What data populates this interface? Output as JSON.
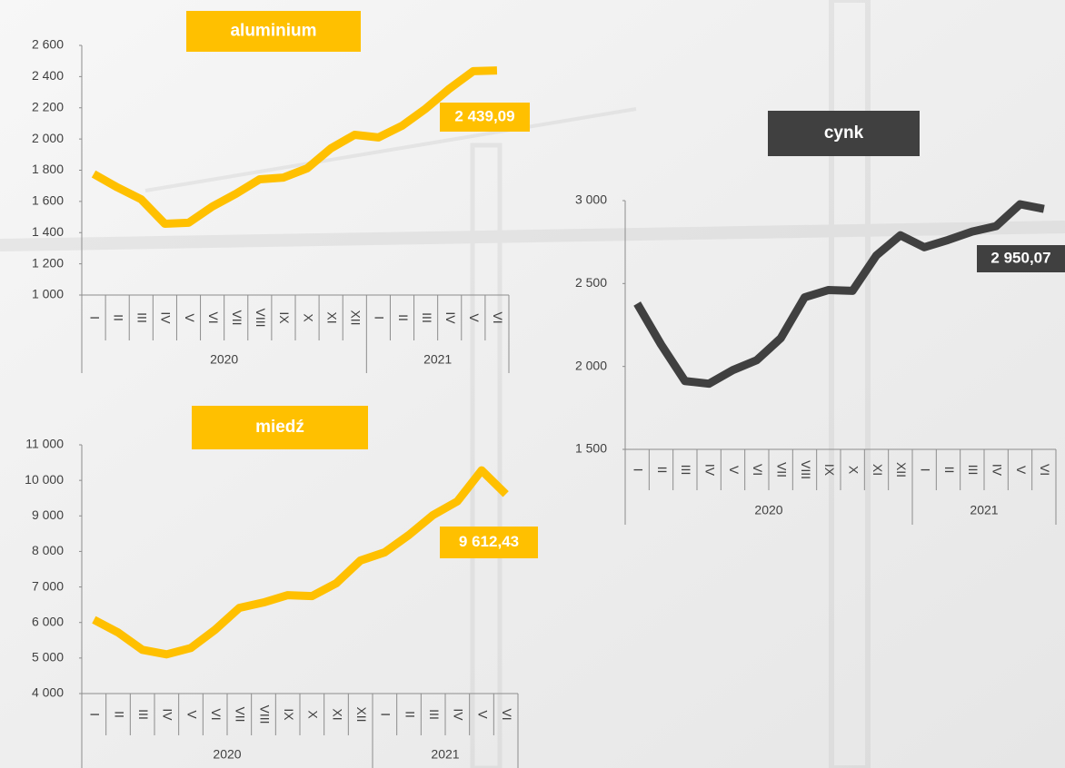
{
  "chart_data": [
    {
      "type": "line",
      "title": "aluminium",
      "color": "#ffc000",
      "category_groups": [
        {
          "label": "2020",
          "categories": [
            "I",
            "II",
            "III",
            "IV",
            "V",
            "VI",
            "VII",
            "VIII",
            "IX",
            "X",
            "XI",
            "XII"
          ]
        },
        {
          "label": "2021",
          "categories": [
            "I",
            "II",
            "III",
            "IV",
            "V",
            "VI"
          ]
        }
      ],
      "values": [
        1776,
        1690,
        1614,
        1457,
        1463,
        1567,
        1649,
        1742,
        1753,
        1812,
        1940,
        2027,
        2010,
        2085,
        2195,
        2323,
        2435,
        2439.09
      ],
      "value_labels": [
        null,
        null,
        null,
        null,
        null,
        null,
        null,
        null,
        null,
        null,
        null,
        null,
        null,
        null,
        null,
        null,
        null,
        "2 439,09"
      ],
      "ylim": [
        1000,
        2600
      ],
      "yticks": [
        {
          "value": 1000,
          "label": "1 000"
        },
        {
          "value": 1200,
          "label": "1 200"
        },
        {
          "value": 1400,
          "label": "1 400"
        },
        {
          "value": 1600,
          "label": "1 600"
        },
        {
          "value": 1800,
          "label": "1 800"
        },
        {
          "value": 2000,
          "label": "2 000"
        },
        {
          "value": 2200,
          "label": "2 200"
        },
        {
          "value": 2400,
          "label": "2 400"
        },
        {
          "value": 2600,
          "label": "2 600"
        }
      ]
    },
    {
      "type": "line",
      "title": "cynk",
      "color": "#404040",
      "category_groups": [
        {
          "label": "2020",
          "categories": [
            "I",
            "II",
            "III",
            "IV",
            "V",
            "VI",
            "VII",
            "VIII",
            "IX",
            "X",
            "XI",
            "XII"
          ]
        },
        {
          "label": "2021",
          "categories": [
            "I",
            "II",
            "III",
            "IV",
            "V",
            "VI"
          ]
        }
      ],
      "values": [
        2379,
        2132,
        1912,
        1896,
        1978,
        2038,
        2170,
        2417,
        2461,
        2456,
        2670,
        2791,
        2719,
        2763,
        2813,
        2846,
        2978,
        2950.07
      ],
      "value_labels": [
        null,
        null,
        null,
        null,
        null,
        null,
        null,
        null,
        null,
        null,
        null,
        null,
        null,
        null,
        null,
        null,
        null,
        "2 950,07"
      ],
      "ylim": [
        1500,
        3000
      ],
      "yticks": [
        {
          "value": 1500,
          "label": "1 500"
        },
        {
          "value": 2000,
          "label": "2 000"
        },
        {
          "value": 2500,
          "label": "2 500"
        },
        {
          "value": 3000,
          "label": "3 000"
        }
      ]
    },
    {
      "type": "line",
      "title": "miedź",
      "color": "#ffc000",
      "category_groups": [
        {
          "label": "2020",
          "categories": [
            "I",
            "II",
            "III",
            "IV",
            "V",
            "VI",
            "VII",
            "VIII",
            "IX",
            "X",
            "XI",
            "XII"
          ]
        },
        {
          "label": "2021",
          "categories": [
            "I",
            "II",
            "III",
            "IV",
            "V",
            "VI"
          ]
        }
      ],
      "values": [
        6077,
        5718,
        5231,
        5103,
        5282,
        5795,
        6410,
        6564,
        6769,
        6744,
        7103,
        7744,
        7974,
        8462,
        9026,
        9410,
        10282,
        9612.43
      ],
      "value_labels": [
        null,
        null,
        null,
        null,
        null,
        null,
        null,
        null,
        null,
        null,
        null,
        null,
        null,
        null,
        null,
        null,
        null,
        "9 612,43"
      ],
      "ylim": [
        4000,
        11000
      ],
      "yticks": [
        {
          "value": 4000,
          "label": "4 000"
        },
        {
          "value": 5000,
          "label": "5 000"
        },
        {
          "value": 6000,
          "label": "6 000"
        },
        {
          "value": 7000,
          "label": "7 000"
        },
        {
          "value": 8000,
          "label": "8 000"
        },
        {
          "value": 9000,
          "label": "9 000"
        },
        {
          "value": 10000,
          "label": "10 000"
        },
        {
          "value": 11000,
          "label": "11 000"
        }
      ]
    }
  ]
}
